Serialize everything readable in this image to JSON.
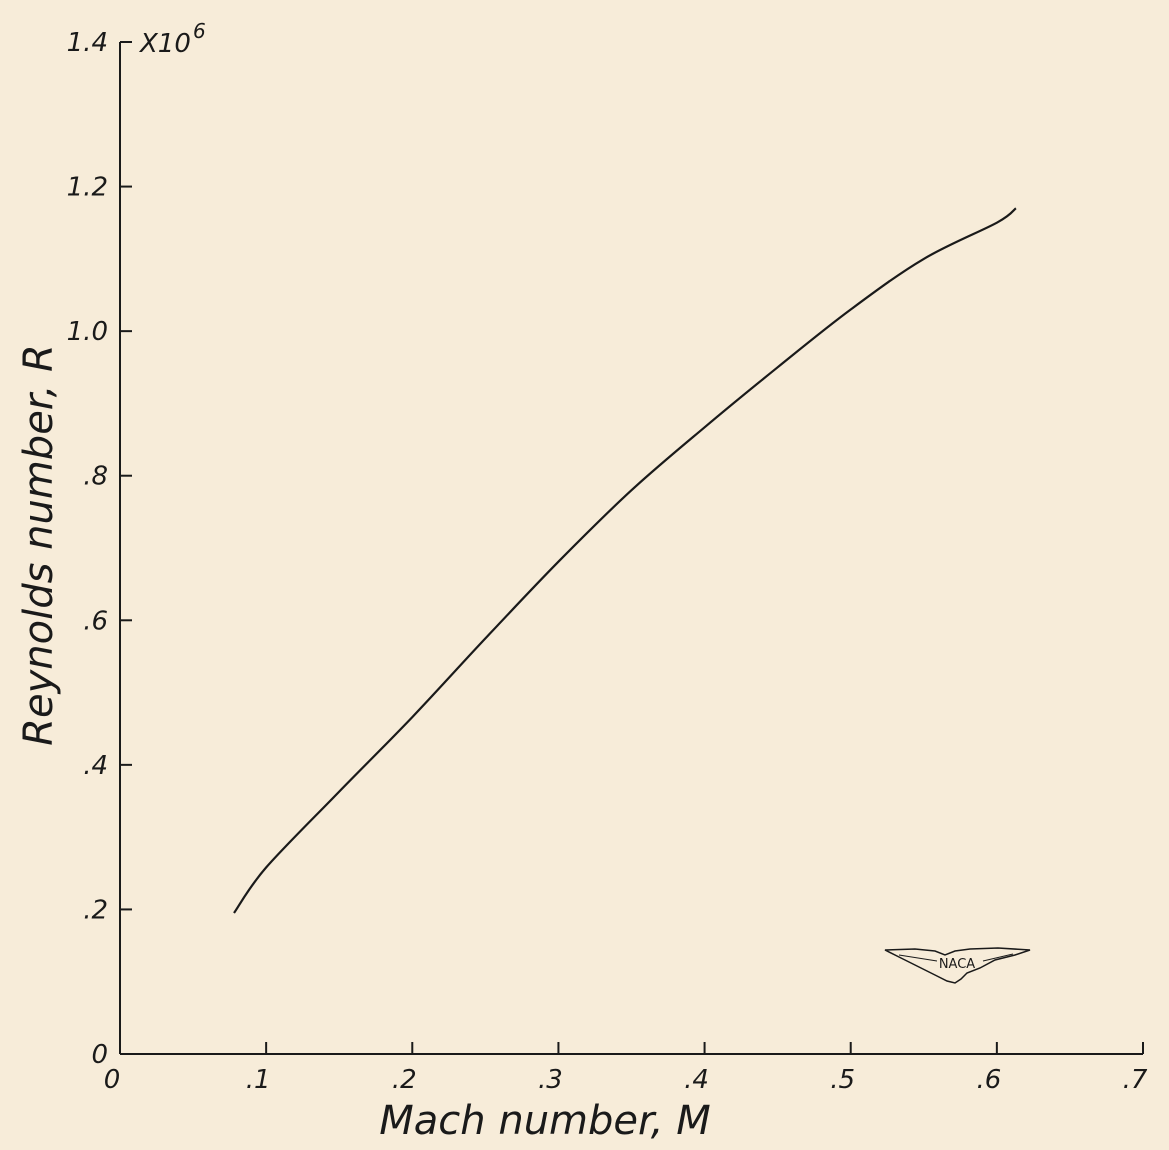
{
  "chart_data": {
    "type": "line",
    "xlabel": "Mach number, M",
    "ylabel": "Reynolds number, R",
    "y_multiplier": "X10",
    "y_multiplier_exponent": "6",
    "xlim": [
      0,
      0.7
    ],
    "ylim": [
      0,
      1.4
    ],
    "x_ticks": [
      0,
      0.1,
      0.2,
      0.3,
      0.4,
      0.5,
      0.6,
      0.7
    ],
    "x_tick_labels": [
      "0",
      ".1",
      ".2",
      ".3",
      ".4",
      ".5",
      ".6",
      ".7"
    ],
    "y_ticks": [
      0,
      0.2,
      0.4,
      0.6,
      0.8,
      1.0,
      1.2,
      1.4
    ],
    "y_tick_labels": [
      "0",
      ".2",
      ".4",
      ".6",
      ".8",
      "1.0",
      "1.2",
      "1.4"
    ],
    "grid": false,
    "series": [
      {
        "x": [
          0.078,
          0.1,
          0.15,
          0.2,
          0.25,
          0.3,
          0.35,
          0.4,
          0.45,
          0.5,
          0.55,
          0.6,
          0.613
        ],
        "y": [
          0.195,
          0.258,
          0.363,
          0.466,
          0.575,
          0.681,
          0.78,
          0.867,
          0.95,
          1.03,
          1.1,
          1.15,
          1.17
        ]
      }
    ],
    "logo_text": "NACA"
  }
}
